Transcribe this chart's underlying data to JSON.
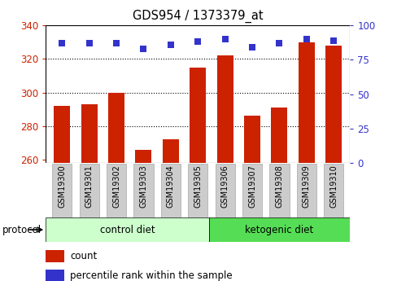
{
  "title": "GDS954 / 1373379_at",
  "samples": [
    "GSM19300",
    "GSM19301",
    "GSM19302",
    "GSM19303",
    "GSM19304",
    "GSM19305",
    "GSM19306",
    "GSM19307",
    "GSM19308",
    "GSM19309",
    "GSM19310"
  ],
  "counts": [
    292,
    293,
    300,
    266,
    272,
    315,
    322,
    286,
    291,
    330,
    328
  ],
  "percentile_ranks": [
    87,
    87,
    87,
    83,
    86,
    88,
    90,
    84,
    87,
    90,
    89
  ],
  "ylim_left": [
    258,
    340
  ],
  "ylim_right": [
    0,
    100
  ],
  "yticks_left": [
    260,
    280,
    300,
    320,
    340
  ],
  "yticks_right": [
    0,
    25,
    50,
    75,
    100
  ],
  "bar_color": "#cc2200",
  "dot_color": "#3333cc",
  "grid_color": "#000000",
  "bg_color": "#ffffff",
  "tick_bg_color": "#cccccc",
  "control_diet_color": "#ccffcc",
  "ketogenic_diet_color": "#55dd55",
  "n_control": 6,
  "n_ketogenic": 5,
  "protocol_label": "protocol",
  "control_label": "control diet",
  "ketogenic_label": "ketogenic diet",
  "legend_count_label": "count",
  "legend_pct_label": "percentile rank within the sample",
  "left_tick_color": "#cc2200",
  "right_tick_color": "#3333cc",
  "bar_width": 0.6,
  "dot_size": 40
}
